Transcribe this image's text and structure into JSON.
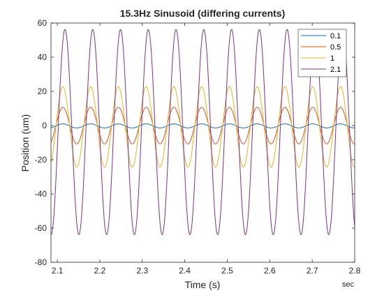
{
  "chart_data": {
    "type": "line",
    "title": "15.3Hz Sinusoid (differing currents)",
    "xlabel": "Time (s)",
    "ylabel": "Position (um)",
    "x_unit_label": "sec",
    "xlim": [
      2.085,
      2.8
    ],
    "ylim": [
      -80,
      60
    ],
    "xticks": [
      2.1,
      2.2,
      2.3,
      2.4,
      2.5,
      2.6,
      2.7,
      2.8
    ],
    "xtick_labels": [
      "2.1",
      "2.2",
      "2.3",
      "2.4",
      "2.5",
      "2.6",
      "2.7",
      "2.8"
    ],
    "yticks": [
      -80,
      -60,
      -40,
      -20,
      0,
      20,
      40,
      60
    ],
    "ytick_labels": [
      "-80",
      "-60",
      "-40",
      "-20",
      "0",
      "20",
      "40",
      "60"
    ],
    "grid": false,
    "legend_position": "top-right",
    "frequency_hz": 15.3,
    "series": [
      {
        "name": "0.1",
        "color": "#0072BD",
        "offset": -0.2,
        "amplitude": 1.2,
        "first_peak_time": 2.113
      },
      {
        "name": "0.5",
        "color": "#D95319",
        "offset": 0.0,
        "amplitude": 10.7,
        "first_peak_time": 2.113
      },
      {
        "name": "1",
        "color": "#EDB120",
        "offset": -0.8,
        "amplitude": 23.5,
        "first_peak_time": 2.113
      },
      {
        "name": "2.1",
        "color": "#7E2F8E",
        "offset": -3.8,
        "amplitude": 60.0,
        "first_peak_time": 2.118
      }
    ]
  }
}
